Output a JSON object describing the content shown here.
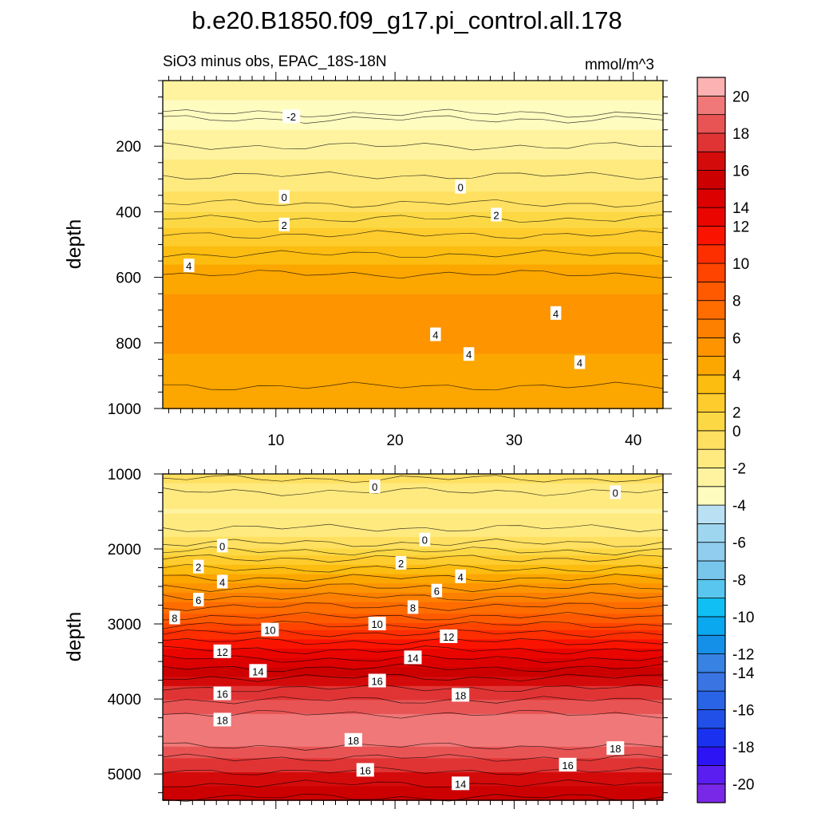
{
  "chart_data": {
    "type": "heatmap",
    "title": "b.e20.B1850.f09_g17.pi_control.all.178",
    "subtitle": "SiO3 minus obs, EPAC_18S-18N",
    "units": "mmol/m^3",
    "x_ticks": [
      "10",
      "20",
      "30",
      "40"
    ],
    "x_tick_values": [
      10,
      20,
      30,
      40
    ],
    "xlim": [
      0.5,
      42.5
    ],
    "panels": [
      {
        "name": "upper",
        "ylabel": "depth",
        "ylim": [
          0,
          1000
        ],
        "y_ticks": [
          "200",
          "400",
          "600",
          "800",
          "1000"
        ],
        "y_tick_values": [
          200,
          400,
          600,
          800,
          1000
        ],
        "depth_top": 25,
        "depth_profile": [
          [
            25,
            -2.2
          ],
          [
            70,
            -2.7
          ],
          [
            110,
            -3.1
          ],
          [
            150,
            -2.6
          ],
          [
            200,
            -2.0
          ],
          [
            270,
            -1.2
          ],
          [
            330,
            -0.6
          ],
          [
            370,
            -0.1
          ],
          [
            400,
            0.5
          ],
          [
            430,
            1.2
          ],
          [
            470,
            2.0
          ],
          [
            520,
            2.8
          ],
          [
            560,
            3.6
          ],
          [
            620,
            4.4
          ],
          [
            700,
            4.9
          ],
          [
            800,
            4.8
          ],
          [
            880,
            4.3
          ],
          [
            950,
            3.9
          ],
          [
            1000,
            3.7
          ]
        ],
        "contour_labels": [
          {
            "text": "-2",
            "x": 11.3,
            "y": 110
          },
          {
            "text": "0",
            "x": 10.7,
            "y": 355
          },
          {
            "text": "0",
            "x": 25.5,
            "y": 325
          },
          {
            "text": "2",
            "x": 10.7,
            "y": 440
          },
          {
            "text": "2",
            "x": 28.5,
            "y": 410
          },
          {
            "text": "4",
            "x": 2.7,
            "y": 565
          },
          {
            "text": "4",
            "x": 33.5,
            "y": 710
          },
          {
            "text": "4",
            "x": 23.4,
            "y": 775
          },
          {
            "text": "4",
            "x": 26.2,
            "y": 835
          },
          {
            "text": "4",
            "x": 35.5,
            "y": 860
          }
        ]
      },
      {
        "name": "lower",
        "ylabel": "depth",
        "ylim": [
          1000,
          5350
        ],
        "y_ticks": [
          "1000",
          "2000",
          "3000",
          "4000",
          "5000"
        ],
        "y_tick_values": [
          1000,
          2000,
          3000,
          4000,
          5000
        ],
        "depth_top": 1000,
        "depth_profile": [
          [
            1000,
            0.6
          ],
          [
            1050,
            0.1
          ],
          [
            1150,
            -0.6
          ],
          [
            1300,
            -1.3
          ],
          [
            1500,
            -1.6
          ],
          [
            1700,
            -1.1
          ],
          [
            1900,
            -0.2
          ],
          [
            2000,
            0.7
          ],
          [
            2100,
            1.8
          ],
          [
            2300,
            3.3
          ],
          [
            2500,
            4.9
          ],
          [
            2700,
            6.5
          ],
          [
            2900,
            8.0
          ],
          [
            3100,
            9.8
          ],
          [
            3300,
            11.6
          ],
          [
            3500,
            13.3
          ],
          [
            3700,
            14.9
          ],
          [
            3900,
            16.3
          ],
          [
            4100,
            17.5
          ],
          [
            4300,
            18.5
          ],
          [
            4450,
            18.8
          ],
          [
            4600,
            18.2
          ],
          [
            4800,
            16.9
          ],
          [
            5000,
            15.8
          ],
          [
            5200,
            14.6
          ],
          [
            5350,
            13.8
          ]
        ],
        "contour_labels": [
          {
            "text": "0",
            "x": 18.3,
            "y": 1170
          },
          {
            "text": "0",
            "x": 38.5,
            "y": 1250
          },
          {
            "text": "0",
            "x": 5.5,
            "y": 1960
          },
          {
            "text": "0",
            "x": 22.5,
            "y": 1880
          },
          {
            "text": "2",
            "x": 3.5,
            "y": 2240
          },
          {
            "text": "2",
            "x": 20.5,
            "y": 2190
          },
          {
            "text": "4",
            "x": 5.5,
            "y": 2440
          },
          {
            "text": "4",
            "x": 25.5,
            "y": 2370
          },
          {
            "text": "6",
            "x": 3.5,
            "y": 2680
          },
          {
            "text": "6",
            "x": 23.5,
            "y": 2560
          },
          {
            "text": "8",
            "x": 1.5,
            "y": 2920
          },
          {
            "text": "8",
            "x": 21.5,
            "y": 2780
          },
          {
            "text": "10",
            "x": 9.5,
            "y": 3080
          },
          {
            "text": "10",
            "x": 18.5,
            "y": 3000
          },
          {
            "text": "12",
            "x": 5.5,
            "y": 3370
          },
          {
            "text": "12",
            "x": 24.5,
            "y": 3170
          },
          {
            "text": "14",
            "x": 8.5,
            "y": 3630
          },
          {
            "text": "14",
            "x": 21.5,
            "y": 3450
          },
          {
            "text": "16",
            "x": 5.5,
            "y": 3930
          },
          {
            "text": "16",
            "x": 18.5,
            "y": 3760
          },
          {
            "text": "18",
            "x": 25.5,
            "y": 3950
          },
          {
            "text": "18",
            "x": 5.5,
            "y": 4280
          },
          {
            "text": "18",
            "x": 16.5,
            "y": 4550
          },
          {
            "text": "18",
            "x": 38.5,
            "y": 4660
          },
          {
            "text": "16",
            "x": 17.5,
            "y": 4950
          },
          {
            "text": "16",
            "x": 34.5,
            "y": 4880
          },
          {
            "text": "14",
            "x": 25.5,
            "y": 5130
          }
        ]
      }
    ],
    "colorbar": {
      "levels": [
        -20,
        -18,
        -16,
        -14,
        -12,
        -10,
        -8,
        -6,
        -4,
        -2,
        0,
        2,
        4,
        6,
        8,
        10,
        12,
        14,
        16,
        18,
        20
      ],
      "labels": [
        "20",
        "18",
        "16",
        "14",
        "12",
        "10",
        "8",
        "6",
        "4",
        "2",
        "0",
        "-2",
        "-4",
        "-6",
        "-8",
        "-10",
        "-12",
        "-14",
        "-16",
        "-18",
        "-20"
      ],
      "colors": [
        "#7a28e8",
        "#5a1ef0",
        "#2d14f5",
        "#1a32f0",
        "#2050e8",
        "#2a64e6",
        "#3a74e2",
        "#3782e2",
        "#1490e8",
        "#0aa8ee",
        "#10c0f4",
        "#58c6ee",
        "#78c6ec",
        "#90cdee",
        "#9fd6ef",
        "#b9e0f3",
        "#fffcc0",
        "#fff3a0",
        "#ffea80",
        "#ffe060",
        "#fcd845",
        "#ffcc2e",
        "#fcbc10",
        "#fca600",
        "#fd9400",
        "#fd8000",
        "#ff6c00",
        "#ff5a00",
        "#ff4400",
        "#fd2e00",
        "#fa1400",
        "#ea0500",
        "#dc0000",
        "#cc0000",
        "#d40b0b",
        "#e03434",
        "#e85454",
        "#f07878",
        "#fcb2b2"
      ]
    }
  }
}
